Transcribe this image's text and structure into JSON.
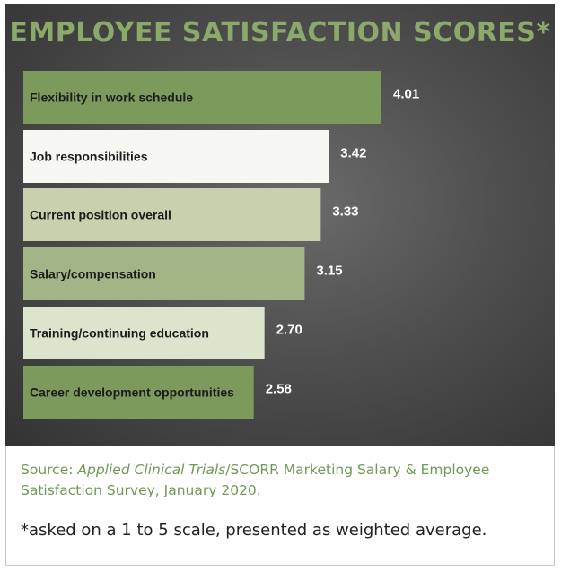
{
  "chart_data": {
    "type": "bar",
    "orientation": "horizontal",
    "title": "EMPLOYEE SATISFACTION SCORES*",
    "categories": [
      "Flexibility in work schedule",
      "Job responsibilities",
      "Current position overall",
      "Salary/compensation",
      "Training/continuing education",
      "Career development opportunities"
    ],
    "values": [
      4.01,
      3.42,
      3.33,
      3.15,
      2.7,
      2.58
    ],
    "value_labels": [
      "4.01",
      "3.42",
      "3.33",
      "3.15",
      "2.70",
      "2.58"
    ],
    "bar_colors": [
      "#7b9a5c",
      "#f7f7f2",
      "#c8d0ae",
      "#a3b586",
      "#dde4cc",
      "#7b9a5c"
    ],
    "xlim": [
      0,
      4.01
    ],
    "grid": false,
    "legend": "none"
  },
  "footer": {
    "source_prefix": "Source: ",
    "source_italic": "Applied Clinical Trials",
    "source_rest": "/SCORR Marketing Salary & Employee Satisfaction Survey, January 2020.",
    "note": "*asked on a 1 to 5 scale, presented as weighted average."
  },
  "colors": {
    "title": "#8aa96a",
    "source_text": "#6e9a55",
    "panel_bg": "#4a4a4a"
  }
}
